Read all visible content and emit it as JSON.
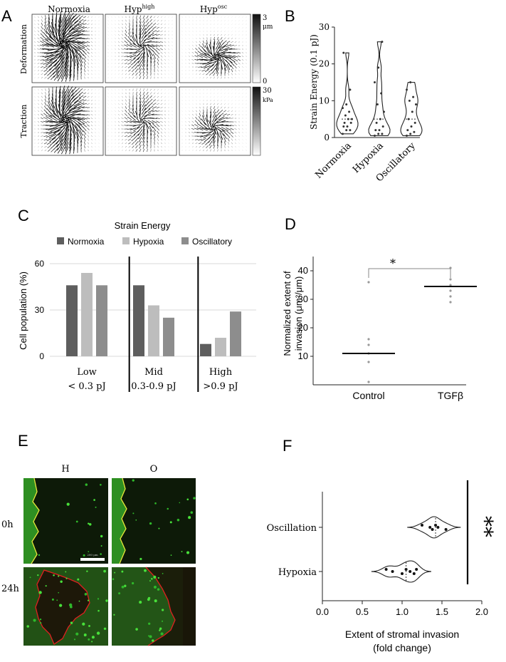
{
  "panels": {
    "A": {
      "letter": "A",
      "col_headers": [
        "Normoxia",
        "Hyp",
        "Hyp"
      ],
      "col_superscripts": [
        "",
        "high",
        "osc"
      ],
      "row_labels": [
        "Deformation",
        "Traction"
      ],
      "colorbar_top": {
        "max": "3",
        "unit": "μm",
        "min": "0"
      },
      "colorbar_bottom": {
        "max": "30",
        "unit": "kPa"
      }
    },
    "B": {
      "letter": "B"
    },
    "C": {
      "letter": "C",
      "group_sublabels": [
        "< 0.3 pJ",
        "0.3-0.9 pJ",
        ">0.9 pJ"
      ]
    },
    "D": {
      "letter": "D",
      "significance": "*"
    },
    "E": {
      "letter": "E",
      "col_headers": [
        "H",
        "O"
      ],
      "row_labels": [
        "0h",
        "24h"
      ],
      "scalebar_label": "200 μm"
    },
    "F": {
      "letter": "F",
      "significance": "**"
    }
  },
  "chart_data": [
    {
      "id": "B",
      "type": "violin",
      "ylabel": "Strain Energy (0.1 pJ)",
      "ylim": [
        0,
        30
      ],
      "yticks": [
        0,
        10,
        20,
        30
      ],
      "categories": [
        "Normoxia",
        "Hypoxia",
        "Oscillatory"
      ],
      "series": [
        {
          "values": [
            1,
            2,
            2,
            3,
            3,
            4,
            4,
            5,
            5,
            6,
            7,
            8,
            9,
            13,
            23
          ]
        },
        {
          "values": [
            0.5,
            1,
            1,
            2,
            2,
            3,
            4,
            5,
            7,
            9,
            12,
            15,
            19,
            26
          ]
        },
        {
          "values": [
            0.5,
            1,
            1.5,
            2,
            3,
            4,
            5,
            7,
            9,
            10,
            11,
            13,
            15
          ]
        }
      ]
    },
    {
      "id": "C",
      "type": "bar",
      "title": "Strain Energy",
      "ylabel": "Cell population (%)",
      "ylim": [
        0,
        60
      ],
      "yticks": [
        0,
        30,
        60
      ],
      "categories": [
        "Low",
        "Mid",
        "High"
      ],
      "series": [
        {
          "name": "Normoxia",
          "values": [
            46,
            46,
            8
          ],
          "color": "#5e5e5e"
        },
        {
          "name": "Hypoxia",
          "values": [
            54,
            33,
            12
          ],
          "color": "#bdbdbd"
        },
        {
          "name": "Oscillatory",
          "values": [
            46,
            25,
            29
          ],
          "color": "#8d8d8d"
        }
      ]
    },
    {
      "id": "D",
      "type": "scatter",
      "ylabel": "Normalized extent of invasion (μm²/μm)",
      "ylim": [
        0,
        45
      ],
      "yticks": [
        10,
        20,
        30,
        40
      ],
      "categories": [
        "Control",
        "TGFβ"
      ],
      "series": [
        {
          "values": [
            1,
            8,
            11,
            14,
            16,
            36
          ],
          "mean": 11
        },
        {
          "values": [
            29,
            31,
            33,
            35,
            37,
            41
          ],
          "mean": 34.5
        }
      ]
    },
    {
      "id": "F",
      "type": "violin",
      "orientation": "horizontal",
      "xlabel": "Extent of stromal invasion (fold change)",
      "xlim": [
        0,
        2.0
      ],
      "xticks": [
        "0.0",
        "0.5",
        "1.0",
        "1.5",
        "2.0"
      ],
      "categories": [
        "Hypoxia",
        "Oscillation"
      ],
      "series": [
        {
          "values": [
            0.8,
            0.88,
            1.0,
            1.05,
            1.1,
            1.15,
            1.18
          ]
        },
        {
          "values": [
            1.25,
            1.35,
            1.38,
            1.42,
            1.45,
            1.55
          ]
        }
      ]
    }
  ]
}
